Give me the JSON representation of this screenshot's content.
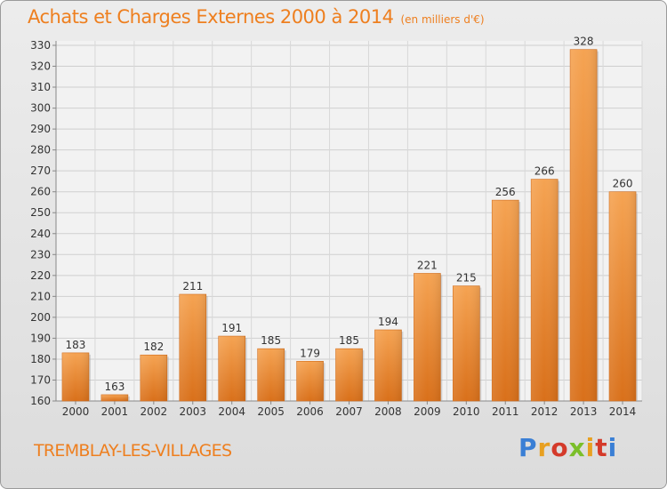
{
  "header": {
    "title": "Achats et Charges Externes 2000 à 2014",
    "unit": "(en milliers d'€)"
  },
  "footer": {
    "commune": "TREMBLAY-LES-VILLAGES",
    "brand_letters": [
      "P",
      "r",
      "o",
      "x",
      "i",
      "t",
      "i"
    ],
    "brand_colors": [
      "#3a7fd5",
      "#e8a020",
      "#d43a2a",
      "#7bbf2a",
      "#e8a020",
      "#d43a2a",
      "#3a7fd5"
    ]
  },
  "chart_data": {
    "type": "bar",
    "title": "Achats et Charges Externes 2000 à 2014",
    "subtitle": "(en milliers d'€)",
    "categories": [
      "2000",
      "2001",
      "2002",
      "2003",
      "2004",
      "2005",
      "2006",
      "2007",
      "2008",
      "2009",
      "2010",
      "2011",
      "2012",
      "2013",
      "2014"
    ],
    "values": [
      183,
      163,
      182,
      211,
      191,
      185,
      179,
      185,
      194,
      221,
      215,
      256,
      266,
      328,
      260
    ],
    "ylim": [
      160,
      330
    ],
    "yticks": [
      160,
      170,
      180,
      190,
      200,
      210,
      220,
      230,
      240,
      250,
      260,
      270,
      280,
      290,
      300,
      310,
      320,
      330
    ],
    "grid": true,
    "bar_color": "#f0963c"
  }
}
